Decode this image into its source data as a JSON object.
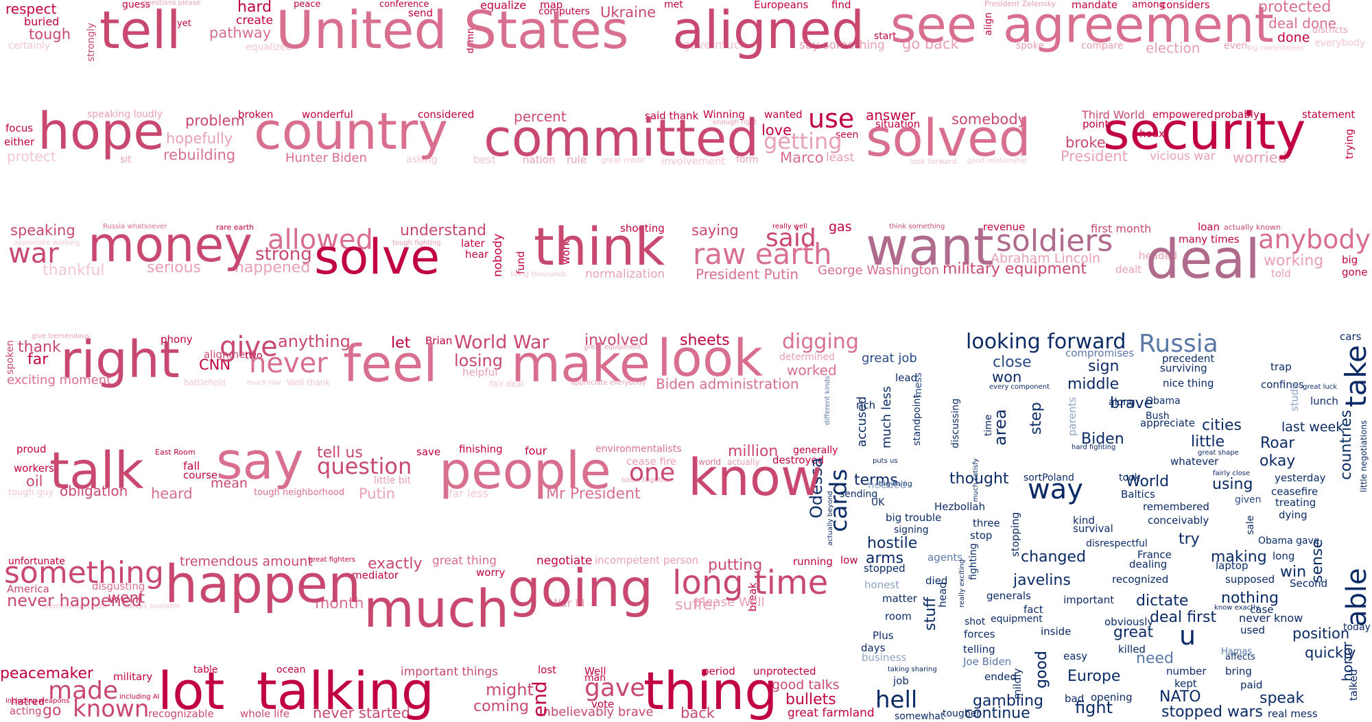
{
  "colors": {
    "r1": "#c00040",
    "r2": "#c84870",
    "r3": "#d96f8e",
    "r4": "#e8a0b4",
    "r5": "#f2c6d2",
    "m1": "#b06a8c",
    "m2": "#9c7e9e",
    "b1": "#0a2a66",
    "b2": "#2a4a88",
    "b3": "#5b79a8",
    "b4": "#8ea3c4"
  },
  "words": [
    "respect",
    "guess",
    "questions please",
    "peace",
    "conference",
    "good",
    "map",
    "met",
    "Europeans",
    "find",
    "President Zelensky",
    "mandate",
    "among",
    "considers",
    "protected",
    "buried",
    "yet",
    "hard",
    "send",
    "equalize",
    "computers",
    "Ukraine",
    "align",
    "deal done",
    "districts",
    "tough",
    "create",
    "pathway",
    "damn",
    "start",
    "done",
    "certainly",
    "equalized",
    "gave much",
    "say something",
    "go back",
    "spoke",
    "compare",
    "election",
    "even",
    "big commitment",
    "everybody",
    "tell",
    "United States",
    "aligned",
    "see",
    "agreement",
    "strongly",
    "focus",
    "speaking loudly",
    "broken",
    "wonderful",
    "considered",
    "percent",
    "said thank",
    "Winning",
    "enough right",
    "wanted",
    "answer",
    "somebody",
    "Third World",
    "empowered",
    "probably",
    "statement",
    "either",
    "problem",
    "use",
    "situation",
    "point",
    "hoax",
    "trying",
    "protect",
    "hopefully",
    "rebuilding",
    "seen",
    "love",
    "broke",
    "sit",
    "asking",
    "best",
    "nation",
    "rule",
    "great credit",
    "involvement",
    "form",
    "Marco",
    "least",
    "look forward",
    "good relationship",
    "President",
    "vicious war",
    "worried",
    "hope",
    "country",
    "committed",
    "solved",
    "security",
    "Hunter Biden",
    "getting",
    "speaking",
    "Russia whatsoever",
    "rare earth",
    "understand",
    "shooting",
    "saying",
    "really well",
    "gas",
    "think something",
    "revenue",
    "first month",
    "loan",
    "actually known",
    "appreciate working",
    "tough fighting",
    "later",
    "hear",
    "work",
    "fund",
    "many times",
    "big",
    "gone",
    "told",
    "war",
    "allowed",
    "strong",
    "raw earth",
    "anybody",
    "working",
    "Abraham Lincoln",
    "headed",
    "nobody",
    "thankful",
    "serious",
    "happened",
    "living thousands",
    "normalization",
    "President Putin",
    "George Washington",
    "military equipment",
    "dealt",
    "money",
    "solve",
    "think",
    "said",
    "want",
    "soldiers",
    "deal",
    "give tremendous",
    "phony",
    "Brian",
    "involved",
    "sheets",
    "digging",
    "great equipment",
    "looking forward",
    "compromises",
    "precedent",
    "trap",
    "cars",
    "thank",
    "alignment",
    "two",
    "let",
    "World War",
    "losing",
    "helpful",
    "determined",
    "worked",
    "great job",
    "surviving",
    "sign",
    "close",
    "confines",
    "lunch",
    "far",
    "CNN",
    "anything",
    "never",
    "lead",
    "mess",
    "won",
    "nice thing",
    "middle",
    "brave",
    "study",
    "great luck",
    "exciting moment",
    "battlefield",
    "much raw",
    "Well thank",
    "fair deal",
    "appreciate everybody",
    "Biden administration",
    "different kinds",
    "every component",
    "Obama",
    "along",
    "Bush",
    "last week",
    "spoken",
    "right",
    "give",
    "feel",
    "make",
    "look",
    "Russia",
    "take",
    "accused",
    "much less",
    "rich",
    "standpoint",
    "discussing",
    "time",
    "area",
    "step",
    "parents",
    "appreciate",
    "cities",
    "countries",
    "little negotiations",
    "proud",
    "East Room",
    "save",
    "finishing",
    "four",
    "environmentalists",
    "generally",
    "hard fighting",
    "Roar",
    "Biden",
    "little",
    "great shape",
    "whatever",
    "okay",
    "fairly close",
    "yesterday",
    "workers",
    "fall",
    "course",
    "tell us",
    "cease fire",
    "world",
    "actually",
    "destroyed",
    "million",
    "puts us",
    "much satisfy",
    "took",
    "ceasefire",
    "oil",
    "mean",
    "little bit",
    "lunch together",
    "Odessa",
    "cards",
    "terms",
    "thought",
    "sortPoland",
    "World",
    "using",
    "treating",
    "big thing",
    "needed",
    "Baltics",
    "tough guy",
    "obligation",
    "heard",
    "tough neighborhood",
    "Putin",
    "far less",
    "Mr President",
    "actually beyond",
    "sending",
    "UK",
    "remembered",
    "given",
    "sale",
    "dying",
    "talk",
    "say",
    "question",
    "people",
    "one",
    "know",
    "way",
    "Hezbollah",
    "three",
    "conceivably",
    "big trouble",
    "kind",
    "survival",
    "signing",
    "stop",
    "stopping",
    "try",
    "unfortunate",
    "tremendous amount",
    "great fighters",
    "exactly",
    "great thing",
    "negotiate",
    "incompetent person",
    "putting",
    "running",
    "low",
    "agents",
    "fighting",
    "France",
    "sense",
    "long",
    "hostile",
    "Obama gave",
    "disrespectful",
    "mediator",
    "worry",
    "arms",
    "changed",
    "dealing",
    "making",
    "laptop",
    "win",
    "Second",
    "America",
    "disgusting",
    "tremendous credit",
    "always available",
    "War III",
    "break",
    "please Well",
    "stopped",
    "died",
    "head",
    "really exciting",
    "javelins",
    "recognized",
    "supposed",
    "never happened",
    "went",
    "month",
    "suffer",
    "honest",
    "matter",
    "stuff",
    "generals",
    "important",
    "nothing",
    "dictate",
    "able",
    "case",
    "know exactly",
    "something",
    "happen",
    "much",
    "going",
    "long time",
    "shot",
    "equipment",
    "fact",
    "obviously",
    "deal first",
    "never know",
    "position",
    "today",
    "table",
    "ocean",
    "important things",
    "lost",
    "Well",
    "man",
    "period",
    "unprotected",
    "room",
    "forces",
    "great",
    "inside",
    "used",
    "honor",
    "military",
    "including AI",
    "including weapons",
    "hatred",
    "acting",
    "vote",
    "good talks",
    "bullets",
    "great farmland",
    "Plus",
    "days",
    "telling",
    "killed",
    "affects",
    "Hamas",
    "quickly",
    "talked",
    "peacemaker",
    "go",
    "recognizable",
    "whole life",
    "never started",
    "coming",
    "unbelievably brave",
    "back",
    "business",
    "Joe Biden",
    "easy",
    "need",
    "number",
    "kept",
    "bring",
    "paid",
    "made",
    "known",
    "might",
    "gave",
    "taking sharing",
    "job",
    "ended",
    "mildly",
    "opening",
    "bad",
    "speak",
    "real mess",
    "lot",
    "talking",
    "end",
    "thing",
    "hell",
    "continue",
    "gambling",
    "fight",
    "Europe",
    "NATO",
    "stopped wars",
    "somewhat",
    "tougher",
    "good",
    "u"
  ]
}
